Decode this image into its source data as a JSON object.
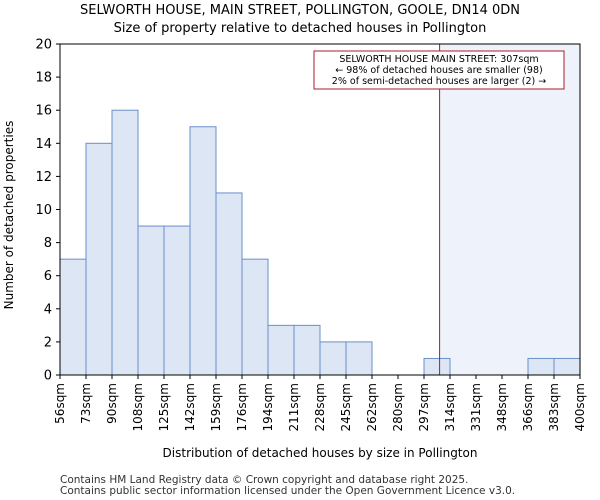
{
  "title_line1": "SELWORTH HOUSE, MAIN STREET, POLLINGTON, GOOLE, DN14 0DN",
  "title_line2": "Size of property relative to detached houses in Pollington",
  "footer_line1": "Contains HM Land Registry data © Crown copyright and database right 2025.",
  "footer_line2": "Contains public sector information licensed under the Open Government Licence v3.0.",
  "colors": {
    "bar_fill": "#dce6f5",
    "bar_edge": "#6a8fca",
    "marker": "#b2182b",
    "highlight": "#eef2fa"
  },
  "chart_data": {
    "type": "bar",
    "xlabel": "Distribution of detached houses by size in Pollington",
    "ylabel": "Number of detached properties",
    "ylim": [
      0,
      20
    ],
    "yticks": [
      0,
      2,
      4,
      6,
      8,
      10,
      12,
      14,
      16,
      18,
      20
    ],
    "bin_edges": [
      "56sqm",
      "73sqm",
      "90sqm",
      "108sqm",
      "125sqm",
      "142sqm",
      "159sqm",
      "176sqm",
      "194sqm",
      "211sqm",
      "228sqm",
      "245sqm",
      "262sqm",
      "280sqm",
      "297sqm",
      "314sqm",
      "331sqm",
      "348sqm",
      "366sqm",
      "383sqm",
      "400sqm"
    ],
    "values": [
      7,
      14,
      16,
      9,
      9,
      15,
      11,
      7,
      3,
      3,
      2,
      2,
      0,
      0,
      1,
      0,
      0,
      0,
      1,
      1
    ],
    "marker_bin_position": 14.6,
    "annotation": {
      "line1": "SELWORTH HOUSE MAIN STREET: 307sqm",
      "line2": "← 98% of detached houses are smaller (98)",
      "line3": "2% of semi-detached houses are larger (2) →"
    }
  }
}
